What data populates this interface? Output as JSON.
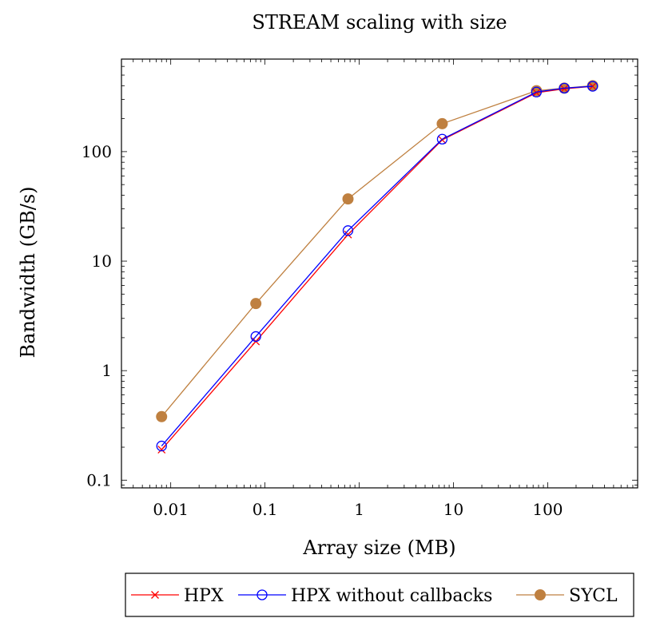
{
  "chart_data": {
    "type": "line",
    "title": "STREAM scaling with size",
    "xlabel": "Array size (MB)",
    "ylabel": "Bandwidth (GB/s)",
    "xscale": "log",
    "yscale": "log",
    "xlim": [
      0.003,
      900
    ],
    "ylim": [
      0.085,
      700
    ],
    "xticks": [
      {
        "value": 0.01,
        "label": "0.01"
      },
      {
        "value": 0.1,
        "label": "0.1"
      },
      {
        "value": 1,
        "label": "1"
      },
      {
        "value": 10,
        "label": "10"
      },
      {
        "value": 100,
        "label": "100"
      }
    ],
    "yticks": [
      {
        "value": 0.1,
        "label": "0.1"
      },
      {
        "value": 1,
        "label": "1"
      },
      {
        "value": 10,
        "label": "10"
      },
      {
        "value": 100,
        "label": "100"
      }
    ],
    "grid": false,
    "legend_position": "bottom",
    "series": [
      {
        "name": "HPX",
        "color": "#ff0000",
        "marker": "cross",
        "x": [
          0.008,
          0.08,
          0.76,
          7.6,
          76,
          150,
          300
        ],
        "y": [
          0.19,
          1.85,
          17.5,
          128,
          345,
          375,
          395
        ]
      },
      {
        "name": "HPX without callbacks",
        "color": "#0000ff",
        "marker": "open-circle",
        "x": [
          0.008,
          0.08,
          0.76,
          7.6,
          76,
          150,
          300
        ],
        "y": [
          0.205,
          2.05,
          19,
          130,
          350,
          380,
          395
        ]
      },
      {
        "name": "SYCL",
        "color": "#bf8040",
        "marker": "filled-circle",
        "x": [
          0.008,
          0.08,
          0.76,
          7.6,
          76,
          150,
          300
        ],
        "y": [
          0.38,
          4.1,
          37,
          180,
          360,
          380,
          400
        ]
      }
    ]
  }
}
